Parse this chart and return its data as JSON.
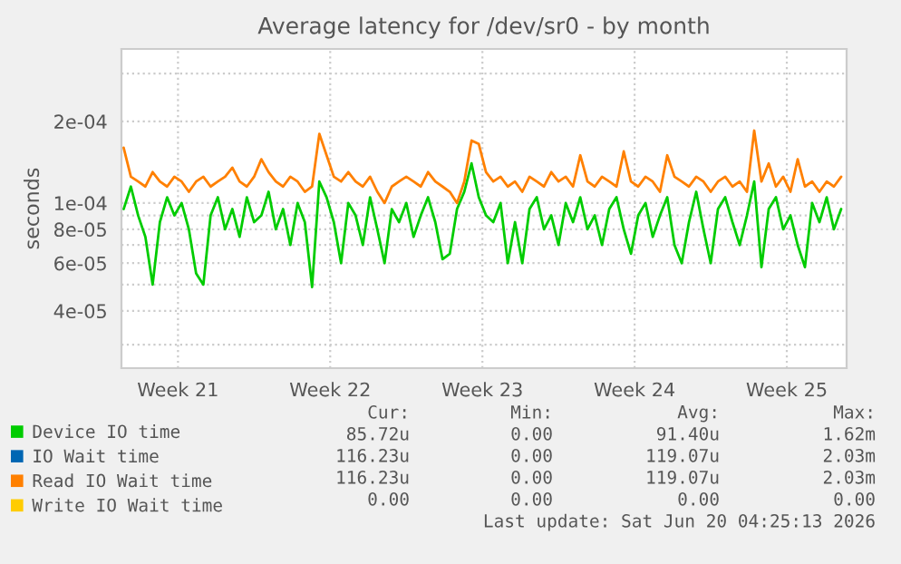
{
  "chart_data": {
    "type": "line",
    "title": "Average latency for /dev/sr0 - by month",
    "ylabel": "seconds",
    "log": "y",
    "grid": true,
    "legend": "bottom",
    "marker": "none",
    "line_style": "solid",
    "xlim": [
      "2026-05-17T21:36",
      "2026-06-20T06:00"
    ],
    "xticks": [
      {
        "value": "2026-05-20T12:00",
        "label": "Week 21"
      },
      {
        "value": "2026-05-27T12:00",
        "label": "Week 22"
      },
      {
        "value": "2026-06-03T12:00",
        "label": "Week 23"
      },
      {
        "value": "2026-06-10T12:00",
        "label": "Week 24"
      },
      {
        "value": "2026-06-17T12:00",
        "label": "Week 25"
      }
    ],
    "ylim": [
      2.46e-05,
      0.00037
    ],
    "yticks": [
      {
        "value": 3e-05,
        "label": null
      },
      {
        "value": 4e-05,
        "label": "4e-05"
      },
      {
        "value": 5e-05,
        "label": null
      },
      {
        "value": 6e-05,
        "label": "6e-05"
      },
      {
        "value": 7e-05,
        "label": null
      },
      {
        "value": 8e-05,
        "label": "8e-05"
      },
      {
        "value": 9e-05,
        "label": null
      },
      {
        "value": 0.0001,
        "label": "1e-04"
      },
      {
        "value": 0.0002,
        "label": "2e-04"
      },
      {
        "value": 0.0003,
        "label": null
      }
    ],
    "x": [
      "2026-05-18T00:00",
      "2026-05-18T08:00",
      "2026-05-18T16:00",
      "2026-05-19T00:00",
      "2026-05-19T08:00",
      "2026-05-19T16:00",
      "2026-05-20T00:00",
      "2026-05-20T08:00",
      "2026-05-20T16:00",
      "2026-05-21T00:00",
      "2026-05-21T08:00",
      "2026-05-21T16:00",
      "2026-05-22T00:00",
      "2026-05-22T08:00",
      "2026-05-22T16:00",
      "2026-05-23T00:00",
      "2026-05-23T08:00",
      "2026-05-23T16:00",
      "2026-05-24T00:00",
      "2026-05-24T08:00",
      "2026-05-24T16:00",
      "2026-05-25T00:00",
      "2026-05-25T08:00",
      "2026-05-25T16:00",
      "2026-05-26T00:00",
      "2026-05-26T08:00",
      "2026-05-26T16:00",
      "2026-05-27T00:00",
      "2026-05-27T08:00",
      "2026-05-27T16:00",
      "2026-05-28T00:00",
      "2026-05-28T08:00",
      "2026-05-28T16:00",
      "2026-05-29T00:00",
      "2026-05-29T08:00",
      "2026-05-29T16:00",
      "2026-05-30T00:00",
      "2026-05-30T08:00",
      "2026-05-30T16:00",
      "2026-05-31T00:00",
      "2026-05-31T08:00",
      "2026-05-31T16:00",
      "2026-06-01T00:00",
      "2026-06-01T08:00",
      "2026-06-01T16:00",
      "2026-06-02T00:00",
      "2026-06-02T08:00",
      "2026-06-02T16:00",
      "2026-06-03T00:00",
      "2026-06-03T08:00",
      "2026-06-03T16:00",
      "2026-06-04T00:00",
      "2026-06-04T08:00",
      "2026-06-04T16:00",
      "2026-06-05T00:00",
      "2026-06-05T08:00",
      "2026-06-05T16:00",
      "2026-06-06T00:00",
      "2026-06-06T08:00",
      "2026-06-06T16:00",
      "2026-06-07T00:00",
      "2026-06-07T08:00",
      "2026-06-07T16:00",
      "2026-06-08T00:00",
      "2026-06-08T08:00",
      "2026-06-08T16:00",
      "2026-06-09T00:00",
      "2026-06-09T08:00",
      "2026-06-09T16:00",
      "2026-06-10T00:00",
      "2026-06-10T08:00",
      "2026-06-10T16:00",
      "2026-06-11T00:00",
      "2026-06-11T08:00",
      "2026-06-11T16:00",
      "2026-06-12T00:00",
      "2026-06-12T08:00",
      "2026-06-12T16:00",
      "2026-06-13T00:00",
      "2026-06-13T08:00",
      "2026-06-13T16:00",
      "2026-06-14T00:00",
      "2026-06-14T08:00",
      "2026-06-14T16:00",
      "2026-06-15T00:00",
      "2026-06-15T08:00",
      "2026-06-15T16:00",
      "2026-06-16T00:00",
      "2026-06-16T08:00",
      "2026-06-16T16:00",
      "2026-06-17T00:00",
      "2026-06-17T08:00",
      "2026-06-17T16:00",
      "2026-06-18T00:00",
      "2026-06-18T08:00",
      "2026-06-18T16:00",
      "2026-06-19T00:00",
      "2026-06-19T08:00",
      "2026-06-19T16:00",
      "2026-06-20T00:00"
    ],
    "series": [
      {
        "name": "Device IO time",
        "color": "#00cc00",
        "values": [
          9.5e-05,
          0.000115,
          9e-05,
          7.5e-05,
          5e-05,
          8.5e-05,
          0.000105,
          9e-05,
          0.0001,
          8e-05,
          5.5e-05,
          5e-05,
          9e-05,
          0.000105,
          8e-05,
          9.5e-05,
          7.5e-05,
          0.000105,
          8.5e-05,
          9e-05,
          0.00011,
          8e-05,
          9.5e-05,
          7e-05,
          0.0001,
          8.5e-05,
          4.9e-05,
          0.00012,
          0.000105,
          8.5e-05,
          6e-05,
          0.0001,
          9e-05,
          7e-05,
          0.000105,
          8e-05,
          6e-05,
          9.5e-05,
          8.5e-05,
          0.0001,
          7.5e-05,
          9e-05,
          0.000105,
          8.5e-05,
          6.2e-05,
          6.5e-05,
          9.5e-05,
          0.00011,
          0.00014,
          0.000105,
          9e-05,
          8.5e-05,
          0.0001,
          6e-05,
          8.5e-05,
          6e-05,
          9.5e-05,
          0.000105,
          8e-05,
          9e-05,
          7e-05,
          0.0001,
          8.5e-05,
          0.000105,
          8e-05,
          9e-05,
          7e-05,
          9.5e-05,
          0.000105,
          8e-05,
          6.5e-05,
          9e-05,
          0.0001,
          7.5e-05,
          9e-05,
          0.000105,
          7e-05,
          6e-05,
          8.5e-05,
          0.00011,
          8e-05,
          6e-05,
          9.5e-05,
          0.000105,
          8.5e-05,
          7e-05,
          9e-05,
          0.00012,
          5.8e-05,
          9.5e-05,
          0.000105,
          8e-05,
          9e-05,
          7e-05,
          5.8e-05,
          0.0001,
          8.5e-05,
          0.000105,
          8e-05,
          9.5e-05
        ]
      },
      {
        "name": "IO Wait time",
        "color": "#0066b3",
        "values": [
          null,
          null,
          null,
          null,
          null,
          null,
          null,
          null,
          null,
          null,
          null,
          null,
          null,
          null,
          null,
          null,
          null,
          null,
          null,
          null,
          null,
          null,
          null,
          null,
          null,
          null,
          null,
          null,
          null,
          null,
          null,
          null,
          null,
          null,
          null,
          null,
          null,
          null,
          null,
          null,
          null,
          null,
          null,
          null,
          null,
          null,
          null,
          null,
          null,
          null,
          null,
          null,
          null,
          null,
          null,
          null,
          null,
          null,
          null,
          null,
          null,
          null,
          null,
          null,
          null,
          null,
          null,
          null,
          null,
          null,
          null,
          null,
          null,
          null,
          null,
          null,
          null,
          null,
          null,
          null,
          null,
          null,
          null,
          null,
          null,
          null,
          null,
          null,
          null,
          null,
          null,
          null,
          null,
          null,
          null,
          null,
          null,
          null,
          null,
          null
        ]
      },
      {
        "name": "Read IO Wait time",
        "color": "#ff8000",
        "values": [
          0.00016,
          0.000125,
          0.00012,
          0.000115,
          0.00013,
          0.00012,
          0.000115,
          0.000125,
          0.00012,
          0.00011,
          0.00012,
          0.000125,
          0.000115,
          0.00012,
          0.000125,
          0.000135,
          0.00012,
          0.000115,
          0.000125,
          0.000145,
          0.00013,
          0.00012,
          0.000115,
          0.000125,
          0.00012,
          0.00011,
          0.000115,
          0.00018,
          0.00015,
          0.000125,
          0.00012,
          0.00013,
          0.00012,
          0.000115,
          0.000125,
          0.00011,
          0.0001,
          0.000115,
          0.00012,
          0.000125,
          0.00012,
          0.000115,
          0.00013,
          0.00012,
          0.000115,
          0.00011,
          0.0001,
          0.00012,
          0.00017,
          0.000165,
          0.00013,
          0.00012,
          0.000125,
          0.000115,
          0.00012,
          0.00011,
          0.000125,
          0.00012,
          0.000115,
          0.00013,
          0.00012,
          0.000125,
          0.000115,
          0.00015,
          0.00012,
          0.000115,
          0.000125,
          0.00012,
          0.000115,
          0.000155,
          0.00012,
          0.000115,
          0.000125,
          0.00012,
          0.00011,
          0.00015,
          0.000125,
          0.00012,
          0.000115,
          0.000125,
          0.00012,
          0.00011,
          0.00012,
          0.000125,
          0.000115,
          0.00012,
          0.00011,
          0.000185,
          0.00012,
          0.00014,
          0.000115,
          0.000125,
          0.00011,
          0.000145,
          0.000115,
          0.00012,
          0.00011,
          0.00012,
          0.000115,
          0.000125
        ]
      },
      {
        "name": "Write IO Wait time",
        "color": "#ffcc00",
        "values": [
          null,
          null,
          null,
          null,
          null,
          null,
          null,
          null,
          null,
          null,
          null,
          null,
          null,
          null,
          null,
          null,
          null,
          null,
          null,
          null,
          null,
          null,
          null,
          null,
          null,
          null,
          null,
          null,
          null,
          null,
          null,
          null,
          null,
          null,
          null,
          null,
          null,
          null,
          null,
          null,
          null,
          null,
          null,
          null,
          null,
          null,
          null,
          null,
          null,
          null,
          null,
          null,
          null,
          null,
          null,
          null,
          null,
          null,
          null,
          null,
          null,
          null,
          null,
          null,
          null,
          null,
          null,
          null,
          null,
          null,
          null,
          null,
          null,
          null,
          null,
          null,
          null,
          null,
          null,
          null,
          null,
          null,
          null,
          null,
          null,
          null,
          null,
          null,
          null,
          null,
          null,
          null,
          null,
          null,
          null,
          null,
          null,
          null,
          null,
          null
        ]
      }
    ],
    "annotations": [
      "Cur:",
      "Min:",
      "Avg:",
      "Max:",
      "85.72u",
      "0.00",
      "91.40u",
      "1.62m",
      "116.23u",
      "0.00",
      "119.07u",
      "2.03m",
      "116.23u",
      "0.00",
      "119.07u",
      "2.03m",
      "0.00",
      "0.00",
      "0.00",
      "0.00",
      "Last update: Sat Jun 20 04:25:13 2026"
    ]
  }
}
